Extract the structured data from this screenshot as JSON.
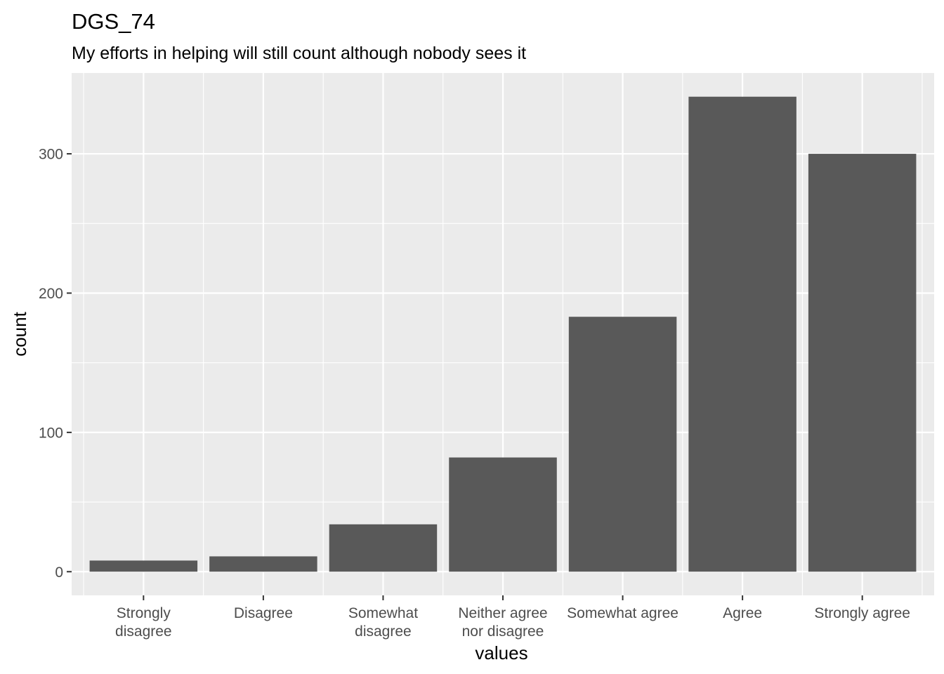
{
  "chart_data": {
    "type": "bar",
    "title": "DGS_74",
    "subtitle": "My efforts in helping will still count although nobody sees it",
    "xlabel": "values",
    "ylabel": "count",
    "categories": [
      "Strongly disagree",
      "Disagree",
      "Somewhat disagree",
      "Neither agree nor disagree",
      "Somewhat agree",
      "Agree",
      "Strongly agree"
    ],
    "category_labels": [
      [
        "Strongly",
        "disagree"
      ],
      [
        "Disagree"
      ],
      [
        "Somewhat",
        "disagree"
      ],
      [
        "Neither agree",
        "nor disagree"
      ],
      [
        "Somewhat agree"
      ],
      [
        "Agree"
      ],
      [
        "Strongly agree"
      ]
    ],
    "values": [
      8,
      11,
      34,
      82,
      183,
      341,
      300
    ],
    "yticks": [
      0,
      100,
      200,
      300
    ],
    "ylim": [
      -17,
      358
    ],
    "grid": true,
    "colors": {
      "panel": "#ebebeb",
      "grid": "#ffffff",
      "bar": "#595959",
      "tick_text": "#4d4d4d"
    }
  }
}
